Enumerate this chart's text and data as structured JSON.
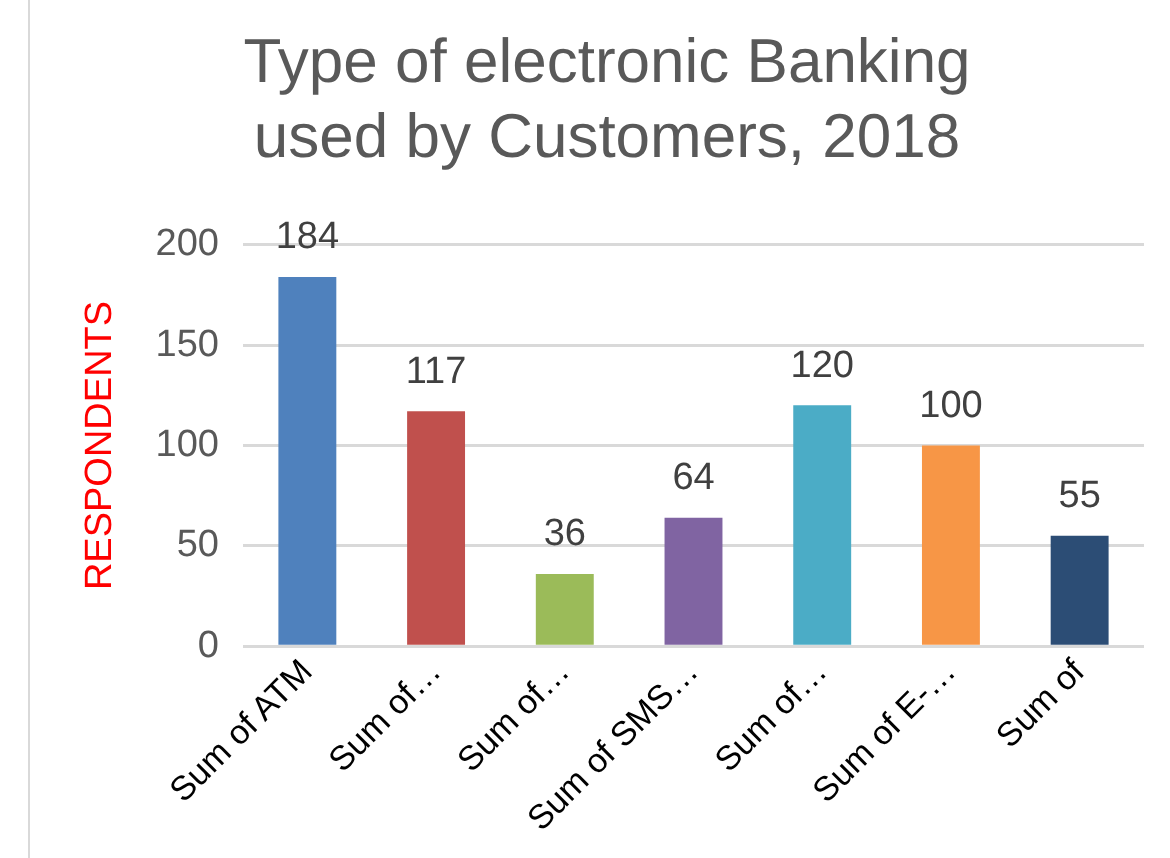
{
  "chart_data": {
    "type": "bar",
    "title": [
      "Type of electronic Banking",
      "used by Customers, 2018"
    ],
    "ylabel": "RESPONDENTS",
    "categories": [
      "Sum of ATM",
      "Sum of…",
      "Sum of…",
      "Sum of SMS…",
      "Sum of…",
      "Sum of E-…",
      "Sum of"
    ],
    "values": [
      184,
      117,
      36,
      64,
      120,
      100,
      55
    ],
    "colors": [
      "#4f81bd",
      "#c0504d",
      "#9bbb59",
      "#8064a2",
      "#4bacc6",
      "#f79646",
      "#2c4d75"
    ],
    "ylim": [
      0,
      200
    ],
    "yticks": [
      0,
      50,
      100,
      150,
      200
    ],
    "grid": "y",
    "legend": false,
    "data_labels": true
  }
}
